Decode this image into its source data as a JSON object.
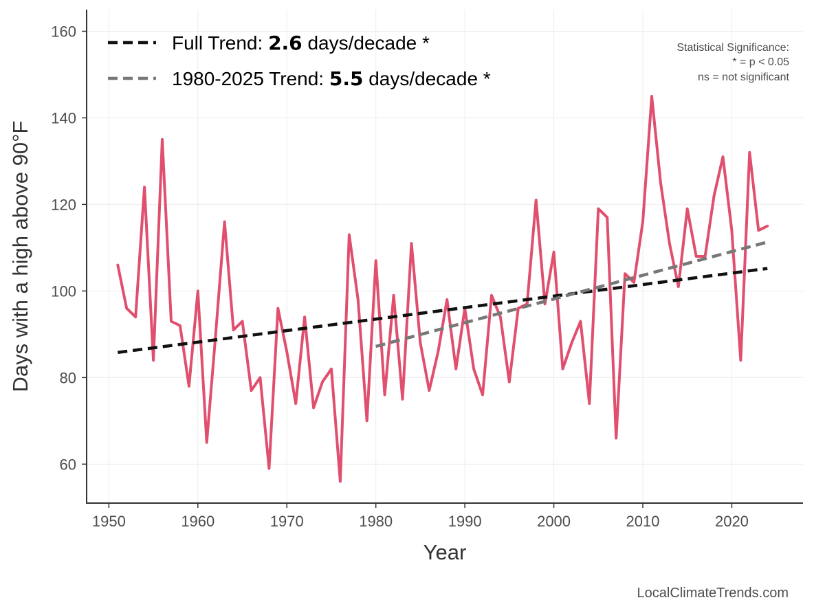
{
  "chart_data": {
    "type": "line",
    "title": "",
    "xlabel": "Year",
    "ylabel": "Days with a high above 90°F",
    "xlim": [
      1947.5,
      2028
    ],
    "ylim": [
      51,
      165
    ],
    "xticks": [
      1950,
      1960,
      1970,
      1980,
      1990,
      2000,
      2010,
      2020
    ],
    "yticks": [
      60,
      80,
      100,
      120,
      140,
      160
    ],
    "grid": true,
    "legend_position": "top-left",
    "colors": {
      "series": "#e04f6e",
      "full_trend": "#111111",
      "recent_trend": "#777777"
    },
    "series": [
      {
        "x": [
          1951,
          1952,
          1953,
          1954,
          1955,
          1956,
          1957,
          1958,
          1959,
          1960,
          1961,
          1962,
          1963,
          1964,
          1965,
          1966,
          1967,
          1968,
          1969,
          1970,
          1971,
          1972,
          1973,
          1974,
          1975,
          1976,
          1977,
          1978,
          1979,
          1980,
          1981,
          1982,
          1983,
          1984,
          1985,
          1986,
          1987,
          1988,
          1989,
          1990,
          1991,
          1992,
          1993,
          1994,
          1995,
          1996,
          1997,
          1998,
          1999,
          2000,
          2001,
          2002,
          2003,
          2004,
          2005,
          2006,
          2007,
          2008,
          2009,
          2010,
          2011,
          2012,
          2013,
          2014,
          2015,
          2016,
          2017,
          2018,
          2019,
          2020,
          2021,
          2022,
          2023,
          2024
        ],
        "values": [
          106,
          96,
          94,
          124,
          84,
          135,
          93,
          92,
          78,
          100,
          65,
          90,
          116,
          91,
          93,
          77,
          80,
          59,
          96,
          86,
          74,
          94,
          73,
          79,
          82,
          56,
          113,
          98,
          70,
          107,
          76,
          99,
          75,
          111,
          88,
          77,
          86,
          98,
          82,
          96,
          82,
          76,
          99,
          94,
          79,
          96,
          97,
          121,
          97,
          109,
          82,
          88,
          93,
          74,
          119,
          117,
          66,
          104,
          102,
          116,
          145,
          125,
          111,
          101,
          119,
          108,
          108,
          122,
          131,
          114,
          84,
          132,
          114,
          115
        ]
      }
    ],
    "trends": [
      {
        "label_prefix": "Full Trend: ",
        "label_value": "2.6",
        "label_suffix": " days/decade *",
        "x": [
          1951,
          2024
        ],
        "y": [
          85.8,
          105.2
        ]
      },
      {
        "label_prefix": "1980-2025 Trend: ",
        "label_value": "5.5",
        "label_suffix": " days/decade *",
        "x": [
          1980,
          2024
        ],
        "y": [
          87.2,
          111.3
        ]
      }
    ],
    "annotations": {
      "significance_title": "Statistical Significance:",
      "significance_line1": "* = p < 0.05",
      "significance_line2": "ns = not significant"
    },
    "credit": "LocalClimateTrends.com"
  }
}
